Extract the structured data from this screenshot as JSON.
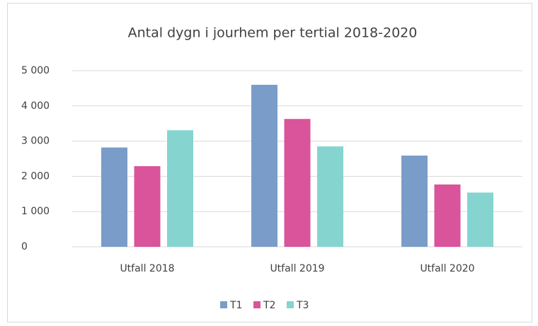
{
  "chart_data": {
    "type": "bar",
    "title": "Antal dygn i jourhem per tertial 2018-2020",
    "categories": [
      "Utfall 2018",
      "Utfall 2019",
      "Utfall 2020"
    ],
    "series": [
      {
        "name": "T1",
        "color": "#7a9cc9",
        "values": [
          2820,
          4600,
          2590
        ]
      },
      {
        "name": "T2",
        "color": "#d9549a",
        "values": [
          2290,
          3630,
          1770
        ]
      },
      {
        "name": "T3",
        "color": "#86d4d0",
        "values": [
          3310,
          2850,
          1540
        ]
      }
    ],
    "ylim": [
      0,
      5000
    ],
    "yticks": [
      0,
      {
        "value": 1000,
        "label": "1 000"
      },
      {
        "value": 2000,
        "label": "2 000"
      },
      {
        "value": 3000,
        "label": "3 000"
      },
      {
        "value": 4000,
        "label": "4 000"
      },
      {
        "value": 5000,
        "label": "5 000"
      }
    ],
    "grid": true,
    "legend": "bottom"
  }
}
